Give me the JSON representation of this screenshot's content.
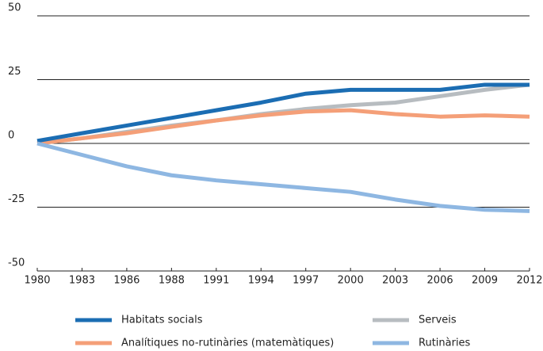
{
  "chart_data": {
    "type": "line",
    "categories": [
      "1980",
      "1983",
      "1986",
      "1988",
      "1991",
      "1994",
      "1997",
      "2000",
      "2003",
      "2006",
      "2009",
      "2012"
    ],
    "series": [
      {
        "name": "Habitats socials",
        "color": "#1b6db3",
        "values": [
          1,
          4,
          7,
          10,
          13,
          16,
          19.5,
          21,
          21,
          21,
          23,
          23
        ]
      },
      {
        "name": "Serveis",
        "color": "#b7bcc0",
        "values": [
          0,
          2,
          4.5,
          7,
          9,
          11.5,
          13.5,
          15,
          16,
          18.5,
          21,
          23
        ]
      },
      {
        "name": "Analítiques no-rutinàries (matemàtiques)",
        "color": "#f49f78",
        "values": [
          0,
          2,
          4,
          6.5,
          9,
          11,
          12.5,
          13,
          11.5,
          10.5,
          11,
          10.5
        ]
      },
      {
        "name": "Rutinàries",
        "color": "#8eb7e2",
        "values": [
          0,
          -4.5,
          -9,
          -12.5,
          -14.5,
          -16,
          -17.5,
          -19,
          -22,
          -24.5,
          -26,
          -26.5
        ]
      }
    ],
    "ylim": [
      -50,
      50
    ],
    "yticks": [
      -50,
      -25,
      0,
      25,
      50
    ],
    "grid": true
  }
}
